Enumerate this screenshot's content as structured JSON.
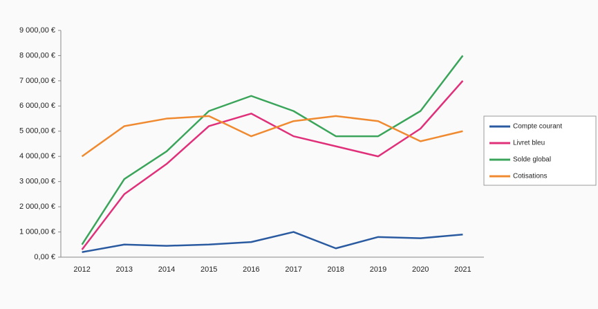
{
  "chart_data": {
    "type": "line",
    "categories": [
      "2012",
      "2013",
      "2014",
      "2015",
      "2016",
      "2017",
      "2018",
      "2019",
      "2020",
      "2021"
    ],
    "series": [
      {
        "name": "Compte courant",
        "color": "#2a5aa0",
        "values": [
          200,
          500,
          450,
          500,
          600,
          1000,
          350,
          800,
          750,
          900
        ]
      },
      {
        "name": "Livret bleu",
        "color": "#e0307a",
        "values": [
          300,
          2500,
          3700,
          5200,
          5700,
          4800,
          4400,
          4000,
          5100,
          7000
        ]
      },
      {
        "name": "Solde global",
        "color": "#3aa55a",
        "values": [
          500,
          3100,
          4200,
          5800,
          6400,
          5800,
          4800,
          4800,
          5800,
          8000
        ]
      },
      {
        "name": "Cotisations",
        "color": "#f08a30",
        "values": [
          4000,
          5200,
          5500,
          5600,
          4800,
          5400,
          5600,
          5400,
          4600,
          5000
        ]
      }
    ],
    "ylim": [
      0,
      9000
    ],
    "yticks": [
      {
        "value": 0,
        "label": "0,00 €"
      },
      {
        "value": 1000,
        "label": "1 000,00 €"
      },
      {
        "value": 2000,
        "label": "2 000,00 €"
      },
      {
        "value": 3000,
        "label": "3 000,00 €"
      },
      {
        "value": 4000,
        "label": "4 000,00 €"
      },
      {
        "value": 5000,
        "label": "5 000,00 €"
      },
      {
        "value": 6000,
        "label": "6 000,00 €"
      },
      {
        "value": 7000,
        "label": "7 000,00 €"
      },
      {
        "value": 8000,
        "label": "8 000,00 €"
      },
      {
        "value": 9000,
        "label": "9 000,00 €"
      }
    ],
    "grid": false,
    "legend": "right"
  }
}
